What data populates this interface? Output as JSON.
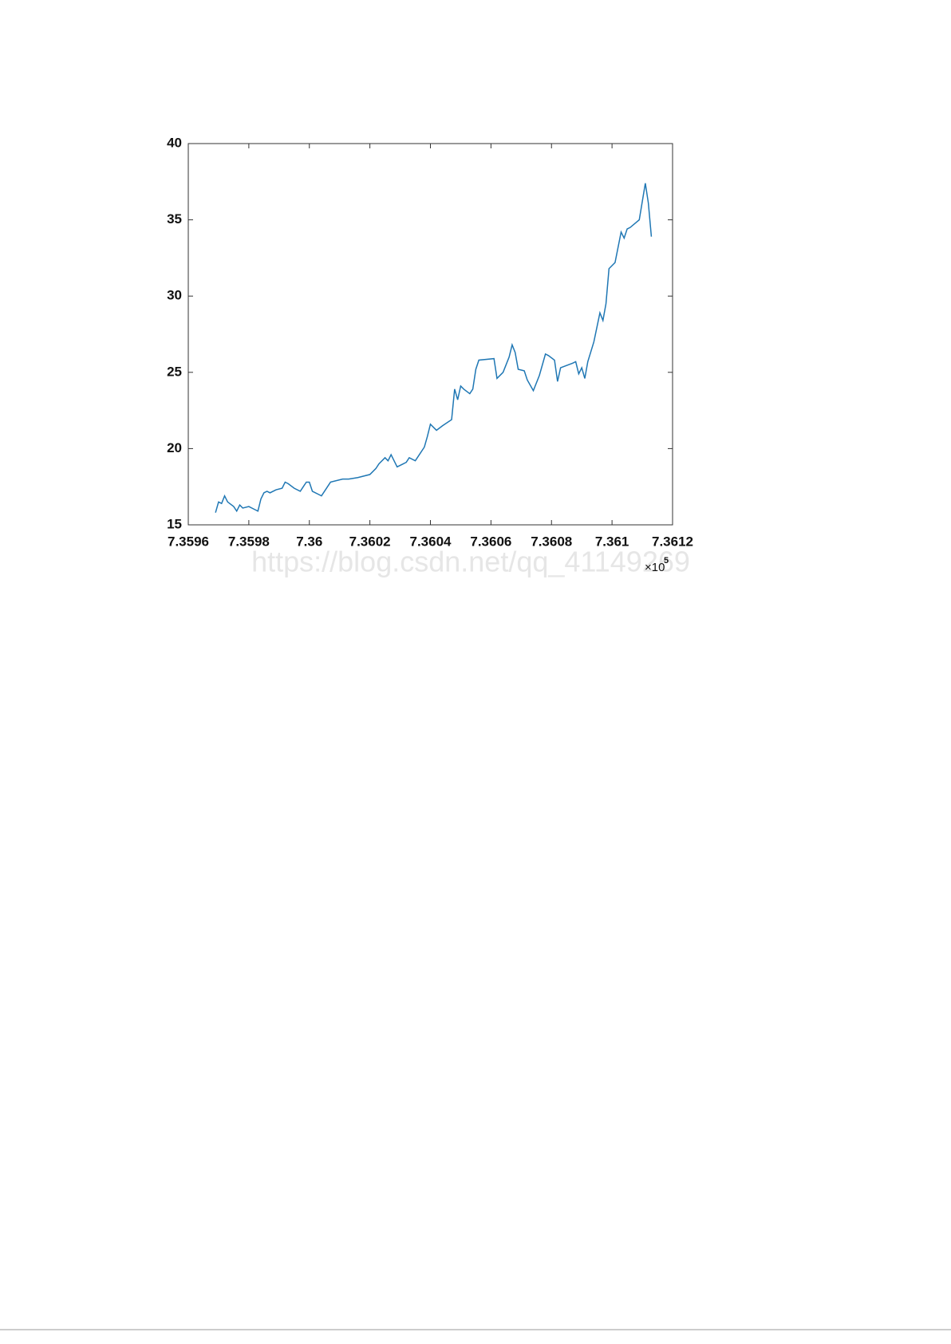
{
  "chart_data": {
    "type": "line",
    "x": [
      735969,
      735970,
      735971,
      735972,
      735973,
      735975,
      735976,
      735977,
      735978,
      735980,
      735982,
      735983,
      735984,
      735985,
      735986,
      735987,
      735989,
      735991,
      735992,
      735993,
      735995,
      735997,
      735998,
      735999,
      736000,
      736001,
      736003,
      736004,
      736005,
      736006,
      736007,
      736011,
      736013,
      736016,
      736020,
      736022,
      736023,
      736025,
      736026,
      736027,
      736028,
      736029,
      736031,
      736032,
      736033,
      736035,
      736036,
      736038,
      736039,
      736040,
      736042,
      736044,
      736047,
      736048,
      736049,
      736050,
      736051,
      736053,
      736054,
      736055,
      736056,
      736061,
      736062,
      736064,
      736066,
      736067,
      736068,
      736069,
      736071,
      736072,
      736074,
      736076,
      736078,
      736079,
      736081,
      736082,
      736083,
      736087,
      736088,
      736089,
      736090,
      736091,
      736092,
      736094,
      736096,
      736097,
      736098,
      736099,
      736101,
      736103,
      736104,
      736105,
      736106,
      736109,
      736111,
      736112,
      736113
    ],
    "series": [
      {
        "color": "#1f77b4",
        "values": [
          15.8,
          16.5,
          16.4,
          16.9,
          16.5,
          16.2,
          15.9,
          16.3,
          16.1,
          16.2,
          16.0,
          15.9,
          16.7,
          17.1,
          17.2,
          17.1,
          17.3,
          17.4,
          17.8,
          17.7,
          17.4,
          17.2,
          17.5,
          17.8,
          17.8,
          17.2,
          17.0,
          16.9,
          17.2,
          17.5,
          17.8,
          18.0,
          18.0,
          18.1,
          18.3,
          18.7,
          19.0,
          19.4,
          19.2,
          19.6,
          19.2,
          18.8,
          19.0,
          19.1,
          19.4,
          19.2,
          19.5,
          20.1,
          20.8,
          21.6,
          21.2,
          21.5,
          21.9,
          23.9,
          23.2,
          24.1,
          23.9,
          23.6,
          23.9,
          25.2,
          25.8,
          25.9,
          24.6,
          25.0,
          26.0,
          26.8,
          26.3,
          25.2,
          25.1,
          24.5,
          23.8,
          24.8,
          26.2,
          26.1,
          25.8,
          24.4,
          25.3,
          25.6,
          25.7,
          24.9,
          25.3,
          24.6,
          25.7,
          27.0,
          28.9,
          28.4,
          29.5,
          31.8,
          32.2,
          34.2,
          33.8,
          34.4,
          34.5,
          35.0,
          37.4,
          36.1,
          33.9
        ]
      }
    ],
    "xlim": [
      735960,
      736120
    ],
    "xticks": [
      {
        "value": 735960,
        "label": "7.3596"
      },
      {
        "value": 735980,
        "label": "7.3598"
      },
      {
        "value": 736000,
        "label": "7.36"
      },
      {
        "value": 736020,
        "label": "7.3602"
      },
      {
        "value": 736040,
        "label": "7.3604"
      },
      {
        "value": 736060,
        "label": "7.3606"
      },
      {
        "value": 736080,
        "label": "7.3608"
      },
      {
        "value": 736100,
        "label": "7.361"
      },
      {
        "value": 736120,
        "label": "7.3612"
      }
    ],
    "x_multiplier": "×10",
    "x_exponent": "5",
    "ylim": [
      15,
      40
    ],
    "yticks": [
      15,
      20,
      25,
      30,
      35,
      40
    ],
    "watermark": "https://blog.csdn.net/qq_41149269"
  }
}
